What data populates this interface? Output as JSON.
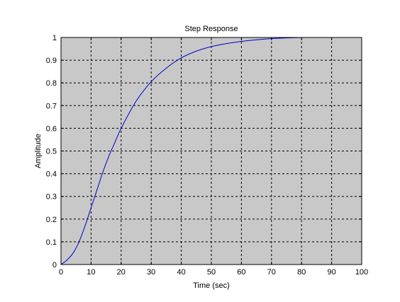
{
  "chart_data": {
    "type": "line",
    "title": "Step Response",
    "xlabel": "Time (sec)",
    "ylabel": "Amplitude",
    "xlim": [
      0,
      100
    ],
    "ylim": [
      0,
      1
    ],
    "xticks": [
      0,
      10,
      20,
      30,
      40,
      50,
      60,
      70,
      80,
      90,
      100
    ],
    "yticks": [
      0,
      0.1,
      0.2,
      0.3,
      0.4,
      0.5,
      0.6,
      0.7,
      0.8,
      0.9,
      1
    ],
    "xtick_labels": [
      "0",
      "10",
      "20",
      "30",
      "40",
      "50",
      "60",
      "70",
      "80",
      "90",
      "100"
    ],
    "ytick_labels": [
      "0",
      "0.1",
      "0.2",
      "0.3",
      "0.4",
      "0.5",
      "0.6",
      "0.7",
      "0.8",
      "0.9",
      "1"
    ],
    "grid": true,
    "grid_style": "dashed",
    "plot_background": "#c8c8c8",
    "series": [
      {
        "color": "#0000cc",
        "x": [
          0,
          2,
          4,
          6,
          8,
          10,
          12,
          14,
          16,
          18,
          20,
          25,
          30,
          35,
          40,
          45,
          50,
          55,
          60,
          65,
          70,
          75,
          80
        ],
        "y": [
          0,
          0.02,
          0.05,
          0.1,
          0.17,
          0.25,
          0.33,
          0.41,
          0.48,
          0.54,
          0.6,
          0.72,
          0.805,
          0.865,
          0.91,
          0.94,
          0.96,
          0.973,
          0.983,
          0.99,
          0.995,
          0.998,
          1.0
        ]
      }
    ]
  }
}
